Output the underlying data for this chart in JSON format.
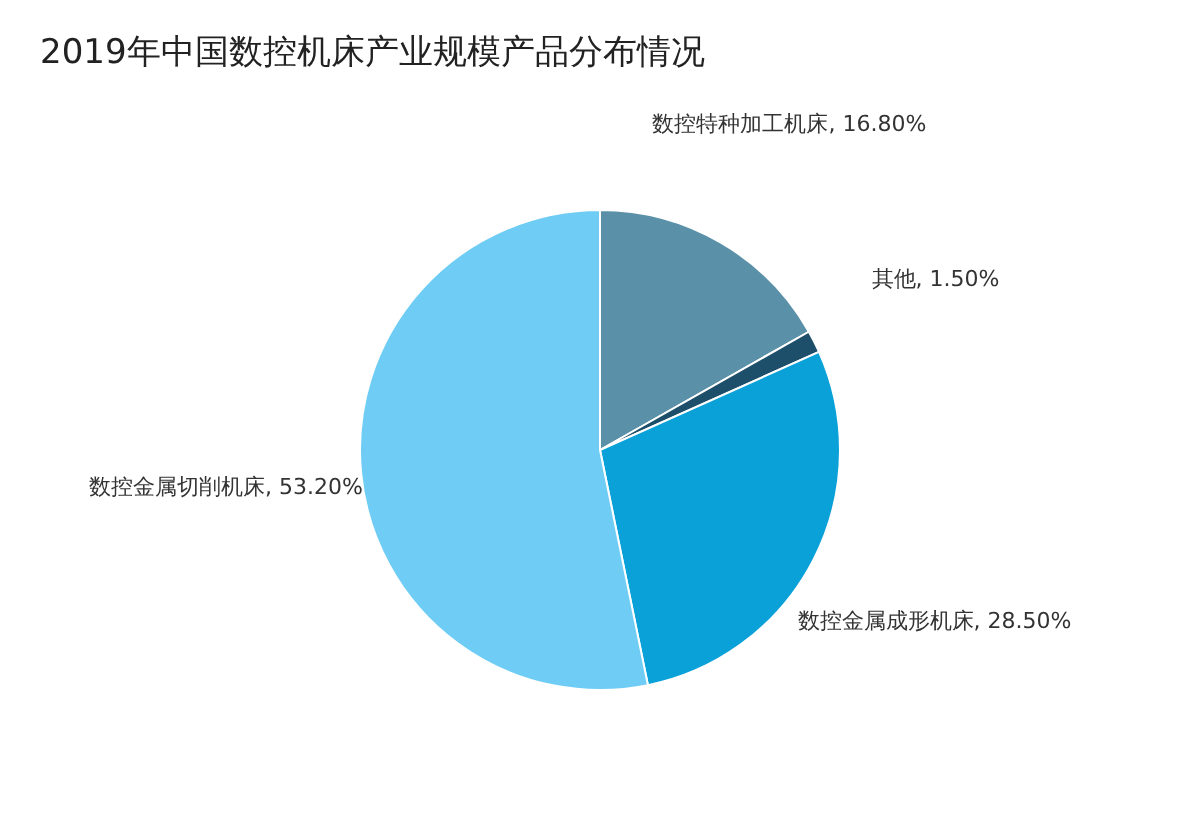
{
  "chart_data": {
    "type": "pie",
    "title": "2019年中国数控机床产业规模产品分布情况",
    "categories": [
      "数控特种加工机床",
      "其他",
      "数控金属成形机床",
      "数控金属切削机床"
    ],
    "values": [
      16.8,
      1.5,
      28.5,
      53.2
    ],
    "colors": [
      "#5b91a8",
      "#1d4f6b",
      "#0aa1d9",
      "#6fcdf5"
    ],
    "value_labels": [
      "16.80%",
      "1.50%",
      "28.50%",
      "53.20%"
    ]
  }
}
